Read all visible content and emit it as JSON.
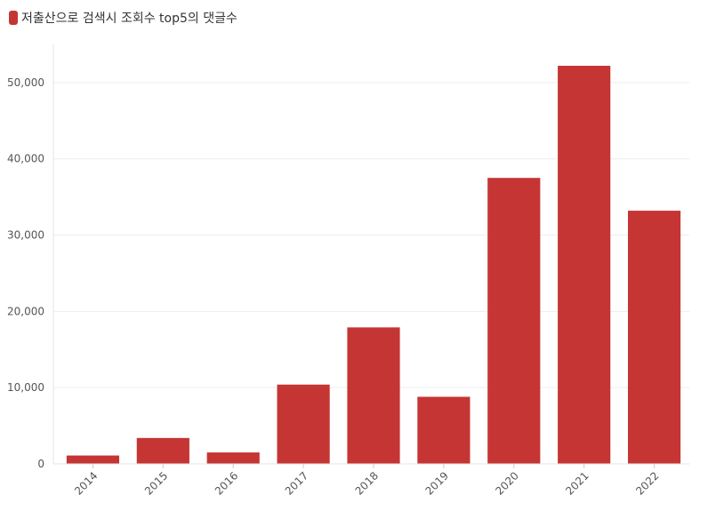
{
  "legend": {
    "label": "저출산으로 검색시 조회수 top5의 댓글수",
    "color": "#c53533"
  },
  "chart_data": {
    "type": "bar",
    "categories": [
      "2014",
      "2015",
      "2016",
      "2017",
      "2018",
      "2019",
      "2020",
      "2021",
      "2022"
    ],
    "series": [
      {
        "name": "저출산으로 검색시 조회수 top5의 댓글수",
        "values": [
          1100,
          3400,
          1500,
          10400,
          17900,
          8800,
          37500,
          52200,
          33200
        ]
      }
    ],
    "ylim": [
      0,
      55000
    ],
    "yticks": [
      0,
      10000,
      20000,
      30000,
      40000,
      50000
    ],
    "ytick_labels": [
      "0",
      "10,000",
      "20,000",
      "30,000",
      "40,000",
      "50,000"
    ],
    "bar_color": "#c53533",
    "grid": true,
    "legend_position": "top-left"
  }
}
